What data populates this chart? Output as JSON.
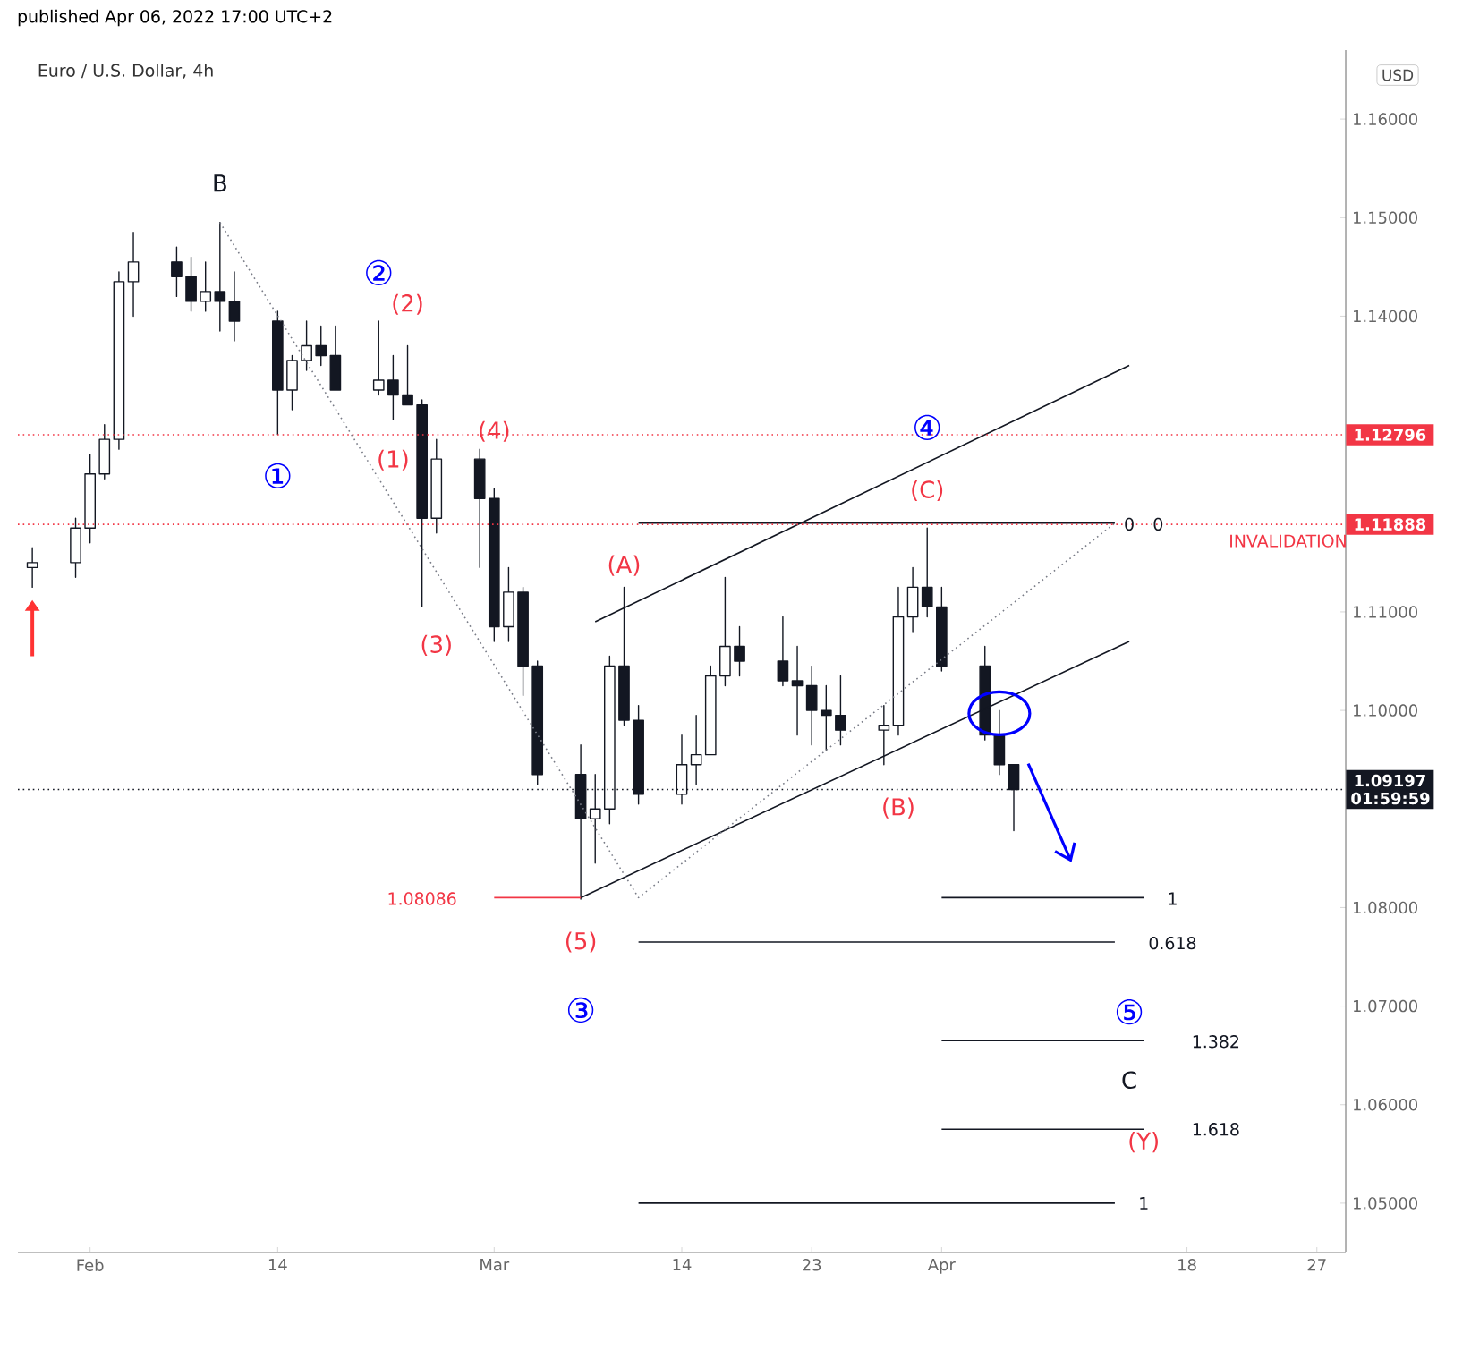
{
  "chart_data": {
    "type": "candlestick",
    "title": "Euro / U.S. Dollar, 4h",
    "x": [
      "2022-01-28",
      "2022-01-31",
      "2022-02-01",
      "2022-02-02",
      "2022-02-03",
      "2022-02-04",
      "2022-02-07",
      "2022-02-08",
      "2022-02-09",
      "2022-02-10",
      "2022-02-11",
      "2022-02-14",
      "2022-02-15",
      "2022-02-16",
      "2022-02-17",
      "2022-02-18",
      "2022-02-21",
      "2022-02-22",
      "2022-02-23",
      "2022-02-24",
      "2022-02-25",
      "2022-02-28",
      "2022-03-01",
      "2022-03-02",
      "2022-03-03",
      "2022-03-04",
      "2022-03-07",
      "2022-03-08",
      "2022-03-09",
      "2022-03-10",
      "2022-03-11",
      "2022-03-14",
      "2022-03-15",
      "2022-03-16",
      "2022-03-17",
      "2022-03-18",
      "2022-03-21",
      "2022-03-22",
      "2022-03-23",
      "2022-03-24",
      "2022-03-25",
      "2022-03-28",
      "2022-03-29",
      "2022-03-30",
      "2022-03-31",
      "2022-04-01",
      "2022-04-04",
      "2022-04-05",
      "2022-04-06"
    ],
    "ohlc": [
      [
        1.1145,
        1.1165,
        1.1125,
        1.115
      ],
      [
        1.115,
        1.1195,
        1.1135,
        1.1185
      ],
      [
        1.1185,
        1.126,
        1.117,
        1.124
      ],
      [
        1.124,
        1.129,
        1.1235,
        1.1275
      ],
      [
        1.1275,
        1.1445,
        1.1265,
        1.1435
      ],
      [
        1.1435,
        1.1485,
        1.14,
        1.1455
      ],
      [
        1.1455,
        1.147,
        1.142,
        1.144
      ],
      [
        1.144,
        1.146,
        1.1405,
        1.1415
      ],
      [
        1.1415,
        1.1455,
        1.1405,
        1.1425
      ],
      [
        1.1425,
        1.1495,
        1.1385,
        1.1415
      ],
      [
        1.1415,
        1.1445,
        1.1375,
        1.1395
      ],
      [
        1.1395,
        1.1405,
        1.128,
        1.1325
      ],
      [
        1.1325,
        1.136,
        1.1305,
        1.1355
      ],
      [
        1.1355,
        1.1395,
        1.1345,
        1.137
      ],
      [
        1.137,
        1.139,
        1.135,
        1.136
      ],
      [
        1.136,
        1.139,
        1.1325,
        1.1325
      ],
      [
        1.1325,
        1.1395,
        1.132,
        1.1335
      ],
      [
        1.1335,
        1.136,
        1.1295,
        1.132
      ],
      [
        1.132,
        1.137,
        1.131,
        1.131
      ],
      [
        1.131,
        1.1315,
        1.1105,
        1.1195
      ],
      [
        1.1195,
        1.1275,
        1.118,
        1.1255
      ],
      [
        1.1255,
        1.1265,
        1.1145,
        1.1215
      ],
      [
        1.1215,
        1.1225,
        1.107,
        1.1085
      ],
      [
        1.1085,
        1.1145,
        1.107,
        1.112
      ],
      [
        1.112,
        1.1125,
        1.1015,
        1.1045
      ],
      [
        1.1045,
        1.105,
        1.0925,
        1.0935
      ],
      [
        1.0935,
        1.0965,
        1.08086,
        1.089
      ],
      [
        1.089,
        1.0935,
        1.0845,
        1.09
      ],
      [
        1.09,
        1.1055,
        1.0885,
        1.1045
      ],
      [
        1.1045,
        1.1125,
        1.0985,
        1.099
      ],
      [
        1.099,
        1.1005,
        1.0905,
        1.0915
      ],
      [
        1.0915,
        1.0975,
        1.0905,
        1.0945
      ],
      [
        1.0945,
        1.0995,
        1.0925,
        1.0955
      ],
      [
        1.0955,
        1.1045,
        1.0955,
        1.1035
      ],
      [
        1.1035,
        1.1135,
        1.1025,
        1.1065
      ],
      [
        1.1065,
        1.1085,
        1.1035,
        1.105
      ],
      [
        1.105,
        1.1095,
        1.1025,
        1.103
      ],
      [
        1.103,
        1.1065,
        1.0975,
        1.1025
      ],
      [
        1.1025,
        1.1045,
        1.0965,
        1.1
      ],
      [
        1.1,
        1.1025,
        1.096,
        1.0995
      ],
      [
        1.0995,
        1.1035,
        1.0965,
        1.098
      ],
      [
        1.098,
        1.1005,
        1.0945,
        1.0985
      ],
      [
        1.0985,
        1.1125,
        1.0975,
        1.1095
      ],
      [
        1.1095,
        1.1145,
        1.108,
        1.1125
      ],
      [
        1.1125,
        1.1185,
        1.1095,
        1.1105
      ],
      [
        1.1105,
        1.1125,
        1.104,
        1.1045
      ],
      [
        1.1045,
        1.1065,
        1.097,
        1.0975
      ],
      [
        1.0975,
        1.1,
        1.0935,
        1.0945
      ],
      [
        1.0945,
        1.0945,
        1.0878,
        1.09197
      ]
    ],
    "color": "#131722",
    "series": [
      {
        "type": "line",
        "x": [
          "2022-03-08",
          "2022-04-14"
        ],
        "values": [
          1.109,
          1.135
        ],
        "color": "#131722",
        "line_style": "solid"
      },
      {
        "type": "line",
        "x": [
          "2022-03-07",
          "2022-04-14"
        ],
        "values": [
          1.081,
          1.107
        ],
        "color": "#131722",
        "line_style": "solid"
      },
      {
        "type": "line",
        "x": [
          "2022-02-10",
          "2022-03-11",
          "2022-04-13"
        ],
        "values": [
          1.1495,
          1.081,
          1.119
        ],
        "color": "#787b86",
        "line_style": "dotted"
      },
      {
        "type": "line",
        "x": [
          "2022-03-11",
          "2022-04-13"
        ],
        "values": [
          1.119,
          1.119
        ],
        "color": "#131722",
        "line_style": "solid"
      },
      {
        "type": "line",
        "x": [
          "2022-04-01",
          "2022-04-15"
        ],
        "values": [
          1.081,
          1.081
        ],
        "color": "#131722",
        "line_style": "solid"
      },
      {
        "type": "line",
        "x": [
          "2022-03-11",
          "2022-04-13"
        ],
        "values": [
          1.0765,
          1.0765
        ],
        "color": "#131722",
        "line_style": "solid"
      },
      {
        "type": "line",
        "x": [
          "2022-04-01",
          "2022-04-15"
        ],
        "values": [
          1.0665,
          1.0665
        ],
        "color": "#131722",
        "line_style": "solid"
      },
      {
        "type": "line",
        "x": [
          "2022-04-01",
          "2022-04-15"
        ],
        "values": [
          1.0575,
          1.0575
        ],
        "color": "#131722",
        "line_style": "solid"
      },
      {
        "type": "line",
        "x": [
          "2022-03-11",
          "2022-04-13"
        ],
        "values": [
          1.05,
          1.05
        ],
        "color": "#131722",
        "line_style": "solid"
      },
      {
        "type": "line",
        "x": [
          "2022-03-01",
          "2022-03-07"
        ],
        "values": [
          1.081,
          1.081
        ],
        "color": "#f23645",
        "line_style": "solid"
      }
    ],
    "xlim": [
      "2022-01-27",
      "2022-04-29"
    ],
    "ylim": [
      1.045,
      1.167
    ],
    "xticks": [
      {
        "value": "2022-02-01",
        "label": "Feb"
      },
      {
        "value": "2022-02-14",
        "label": "14"
      },
      {
        "value": "2022-03-01",
        "label": "Mar"
      },
      {
        "value": "2022-03-14",
        "label": "14"
      },
      {
        "value": "2022-03-23",
        "label": "23"
      },
      {
        "value": "2022-04-01",
        "label": "Apr"
      },
      {
        "value": "2022-04-18",
        "label": "18"
      },
      {
        "value": "2022-04-27",
        "label": "27"
      }
    ],
    "yticks": [
      {
        "value": 1.05,
        "label": "1.05000"
      },
      {
        "value": 1.06,
        "label": "1.06000"
      },
      {
        "value": 1.07,
        "label": "1.07000"
      },
      {
        "value": 1.08,
        "label": "1.08000"
      },
      {
        "value": 1.1,
        "label": "1.10000"
      },
      {
        "value": 1.11,
        "label": "1.11000"
      },
      {
        "value": 1.14,
        "label": "1.14000"
      },
      {
        "value": 1.15,
        "label": "1.15000"
      },
      {
        "value": 1.16,
        "label": "1.16000"
      }
    ],
    "ref_lines": [
      {
        "axis": "y",
        "value": 1.12796,
        "label": "1.12796",
        "color": "#f23645",
        "line_style": "dotted"
      },
      {
        "axis": "y",
        "value": 1.11888,
        "label": "1.11888",
        "color": "#f23645",
        "line_style": "dotted"
      },
      {
        "axis": "y",
        "value": 1.09197,
        "label": "1.09197 01:59:59",
        "color": "#131722",
        "line_style": "dotted"
      }
    ],
    "annotations": [
      "published Apr 06, 2022 17:00 UTC+2",
      "USD",
      "B",
      "②",
      "(2)",
      "①",
      "(1)",
      "(4)",
      "(3)",
      "(5)",
      "③",
      "1.08086",
      "(A)",
      "④",
      "(C)",
      "(B)",
      "⑤",
      "C",
      "(Y)",
      "INVALIDATION",
      "0",
      "0",
      "1",
      "0.618",
      "1.382",
      "1.618",
      "1"
    ]
  }
}
